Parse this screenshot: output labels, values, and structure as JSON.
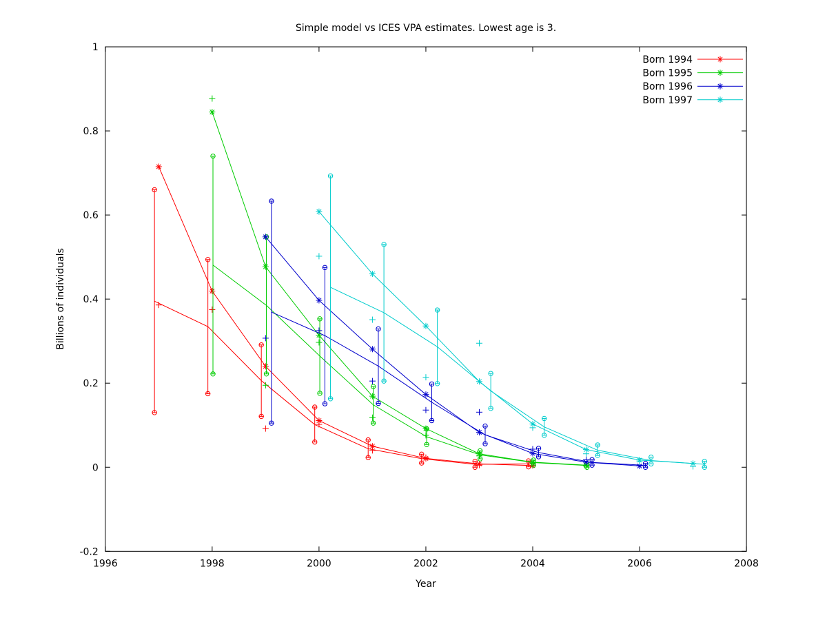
{
  "chart_data": {
    "type": "line",
    "title": "Simple model vs ICES VPA estimates. Lowest age is 3.",
    "xlabel": "Year",
    "ylabel": "Billions of individuals",
    "xlim": [
      1996,
      2008
    ],
    "ylim": [
      -0.2,
      1
    ],
    "grid": false,
    "x_ticks": [
      1996,
      1998,
      2000,
      2002,
      2004,
      2006,
      2008
    ],
    "x_tick_labels": [
      "1996",
      "1998",
      "2000",
      "2002",
      "2004",
      "2006",
      "2008"
    ],
    "y_ticks": [
      -0.2,
      0,
      0.2,
      0.4,
      0.6,
      0.8,
      1
    ],
    "y_tick_labels": [
      "-0.2",
      "0",
      "0.2",
      "0.4",
      "0.6",
      "0.8",
      "1"
    ],
    "legend_position": "top-right",
    "series_notes": "Each cohort: line with asterisk markers (model estimates at x=year), plus markers (point estimates), vertical confidence bars with open-circle capped ends at x=year+bar_offset, and a second line joining the bar midpoints.",
    "series": [
      {
        "name": "Born 1994",
        "slug": "born-1994",
        "color": "#ff0000",
        "bar_offset": -0.08,
        "years": [
          1997,
          1998,
          1999,
          2000,
          2001,
          2002,
          2003,
          2004
        ],
        "star": [
          0.715,
          0.419,
          0.24,
          0.111,
          0.05,
          0.021,
          0.008,
          0.004
        ],
        "plus": [
          0.386,
          0.375,
          0.092,
          0.102,
          0.04,
          0.023,
          0.005,
          0.009
        ],
        "ci_lo": [
          0.13,
          0.175,
          0.121,
          0.06,
          0.023,
          0.01,
          0.0,
          0.001
        ],
        "ci_hi": [
          0.66,
          0.494,
          0.291,
          0.143,
          0.065,
          0.031,
          0.014,
          0.015
        ]
      },
      {
        "name": "Born 1995",
        "slug": "born-1995",
        "color": "#00cc00",
        "bar_offset": 0.015,
        "years": [
          1998,
          1999,
          2000,
          2001,
          2002,
          2003,
          2004,
          2005
        ],
        "star": [
          0.845,
          0.477,
          0.314,
          0.169,
          0.092,
          0.032,
          0.012,
          0.005
        ],
        "plus": [
          0.877,
          0.195,
          0.297,
          0.118,
          0.076,
          0.027,
          0.01,
          0.003
        ],
        "ci_lo": [
          0.222,
          0.222,
          0.176,
          0.105,
          0.054,
          0.02,
          0.005,
          0.0
        ],
        "ci_hi": [
          0.74,
          0.548,
          0.353,
          0.192,
          0.091,
          0.039,
          0.017,
          0.008
        ]
      },
      {
        "name": "Born 1996",
        "slug": "born-1996",
        "color": "#0000cc",
        "bar_offset": 0.11,
        "years": [
          1999,
          2000,
          2001,
          2002,
          2003,
          2004,
          2005,
          2006
        ],
        "star": [
          0.548,
          0.397,
          0.281,
          0.173,
          0.083,
          0.033,
          0.012,
          0.003
        ],
        "plus": [
          0.307,
          0.325,
          0.205,
          0.136,
          0.131,
          0.043,
          0.018,
          0.004
        ],
        "ci_lo": [
          0.105,
          0.151,
          0.152,
          0.111,
          0.056,
          0.025,
          0.005,
          0.0
        ],
        "ci_hi": [
          0.633,
          0.475,
          0.329,
          0.198,
          0.098,
          0.045,
          0.018,
          0.009
        ]
      },
      {
        "name": "Born 1997",
        "slug": "born-1997",
        "color": "#00cccc",
        "bar_offset": 0.215,
        "years": [
          2000,
          2001,
          2002,
          2003,
          2004,
          2005,
          2006,
          2007
        ],
        "star": [
          0.608,
          0.46,
          0.336,
          0.204,
          0.103,
          0.042,
          0.017,
          0.009
        ],
        "plus": [
          0.502,
          0.351,
          0.214,
          0.295,
          0.094,
          0.032,
          0.013,
          0.002
        ],
        "ci_lo": [
          0.163,
          0.205,
          0.199,
          0.14,
          0.076,
          0.028,
          0.008,
          0.0
        ],
        "ci_hi": [
          0.693,
          0.53,
          0.374,
          0.223,
          0.116,
          0.053,
          0.024,
          0.014
        ]
      }
    ],
    "legend": [
      {
        "label": "Born 1994",
        "color": "#ff0000"
      },
      {
        "label": "Born 1995",
        "color": "#00cc00"
      },
      {
        "label": "Born 1996",
        "color": "#0000cc"
      },
      {
        "label": "Born 1997",
        "color": "#00cccc"
      }
    ]
  }
}
